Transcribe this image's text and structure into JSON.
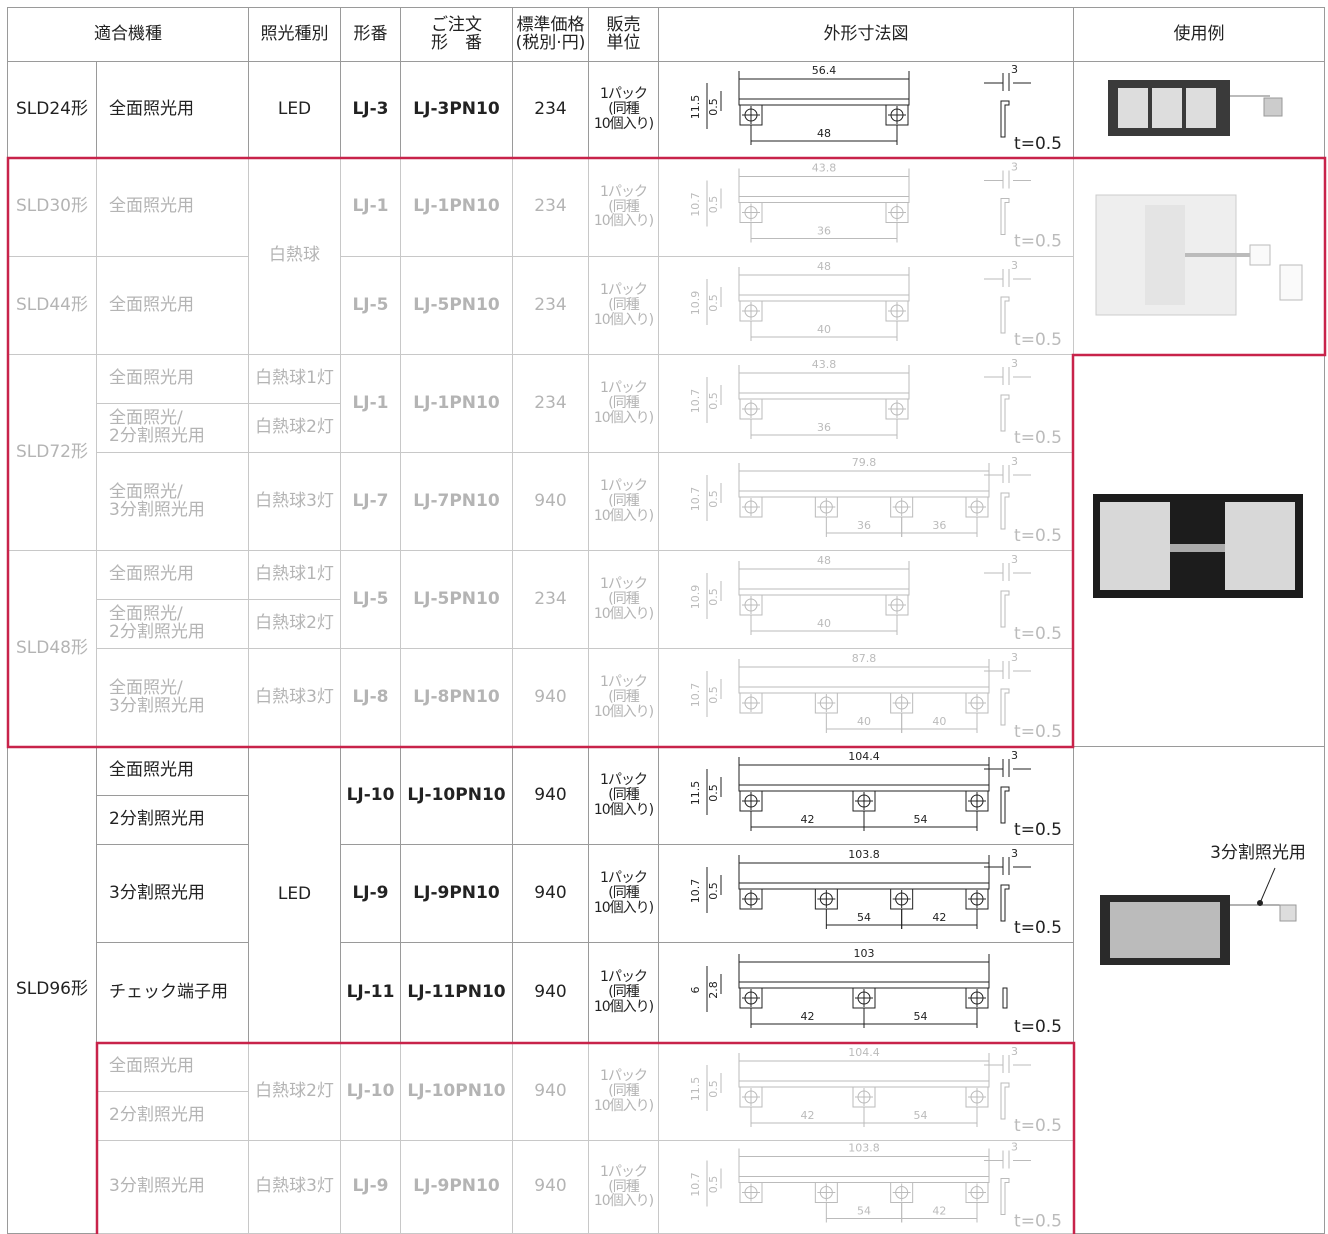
{
  "table": {
    "header": [
      "適合機種",
      "照光種別",
      "形番",
      "ご注文\n形　番",
      "標準価格\n(税別·円)",
      "販売\n単位",
      "外形寸法図",
      "使用例"
    ],
    "models": [
      "SLD24形",
      "SLD30形",
      "SLD44形",
      "SLD72形",
      "SLD48形",
      "SLD96形"
    ],
    "uses": [
      "全面照光用",
      "全面照光用",
      "全面照光用",
      "全面照光用",
      "全面照光/\n2分割照光用",
      "全面照光/\n3分割照光用",
      "全面照光用",
      "全面照光/\n2分割照光用",
      "全面照光/\n3分割照光用",
      "全面照光用",
      "2分割照光用",
      "3分割照光用",
      "チェック端子用",
      "全面照光用",
      "2分割照光用",
      "3分割照光用"
    ],
    "lights": [
      "LED",
      "白熱球",
      "白熱球1灯",
      "白熱球2灯",
      "白熱球3灯",
      "白熱球1灯",
      "白熱球2灯",
      "白熱球3灯",
      "LED",
      "白熱球2灯",
      "白熱球3灯"
    ],
    "parts": [
      "LJ-3",
      "LJ-1",
      "LJ-5",
      "LJ-1",
      "LJ-7",
      "LJ-5",
      "LJ-8",
      "LJ-10",
      "LJ-9",
      "LJ-11",
      "LJ-10",
      "LJ-9"
    ],
    "orders": [
      "LJ-3PN10",
      "LJ-1PN10",
      "LJ-5PN10",
      "LJ-1PN10",
      "LJ-7PN10",
      "LJ-5PN10",
      "LJ-8PN10",
      "LJ-10PN10",
      "LJ-9PN10",
      "LJ-11PN10",
      "LJ-10PN10",
      "LJ-9PN10"
    ],
    "prices": [
      "234",
      "234",
      "234",
      "234",
      "940",
      "234",
      "940",
      "940",
      "940",
      "940",
      "940",
      "940"
    ],
    "unit": "1パック\n(同種\n10個入り)",
    "thickness": "t=0.5",
    "drawings": [
      {
        "length": "56.4",
        "spans": [
          "48"
        ],
        "height": "11.5",
        "thick": "0.5",
        "tab": "3"
      },
      {
        "length": "43.8",
        "spans": [
          "36"
        ],
        "height": "10.7",
        "thick": "0.5",
        "tab": "3"
      },
      {
        "length": "48",
        "spans": [
          "40"
        ],
        "height": "10.9",
        "thick": "0.5",
        "tab": "3"
      },
      {
        "length": "43.8",
        "spans": [
          "36"
        ],
        "height": "10.7",
        "thick": "0.5",
        "tab": "3"
      },
      {
        "length": "79.8",
        "spans": [
          "36",
          "36"
        ],
        "height": "10.7",
        "thick": "0.5",
        "tab": "3"
      },
      {
        "length": "48",
        "spans": [
          "40"
        ],
        "height": "10.9",
        "thick": "0.5",
        "tab": "3"
      },
      {
        "length": "87.8",
        "spans": [
          "40",
          "40"
        ],
        "height": "10.7",
        "thick": "0.5",
        "tab": "3"
      },
      {
        "length": "104.4",
        "spans": [
          "42",
          "54"
        ],
        "height": "11.5",
        "thick": "0.5",
        "tab": "3"
      },
      {
        "length": "103.8",
        "spans": [
          "54",
          "42"
        ],
        "height": "10.7",
        "thick": "0.5",
        "tab": "3"
      },
      {
        "length": "103",
        "spans": [
          "42",
          "54"
        ],
        "height": "6",
        "thick": "2.8"
      },
      {
        "length": "104.4",
        "spans": [
          "42",
          "54"
        ],
        "height": "11.5",
        "thick": "0.5",
        "tab": "3"
      },
      {
        "length": "103.8",
        "spans": [
          "54",
          "42"
        ],
        "height": "10.7",
        "thick": "0.5",
        "tab": "3"
      }
    ],
    "example_label": "3分割照光用"
  }
}
